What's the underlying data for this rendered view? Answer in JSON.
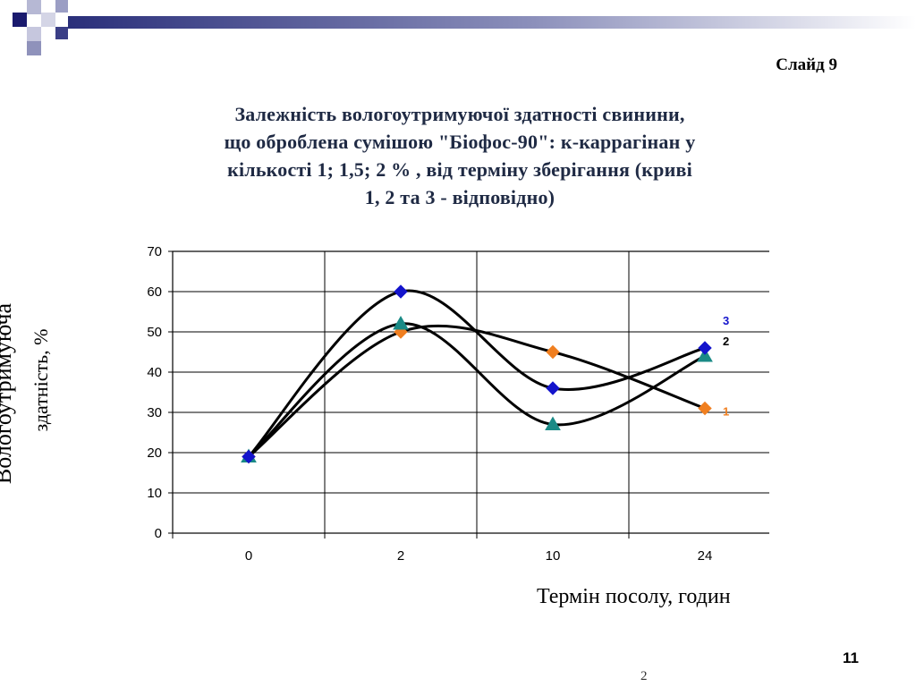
{
  "slide": {
    "label": "Слайд 9",
    "page_number": "11",
    "footer_number": "2"
  },
  "chart_data": {
    "type": "line",
    "title": "Залежність вологоутримуючої здатності свинини, що оброблена сумішою \"Біофос-90\": к-каррагінан у кількості 1; 1,5; 2 % , від терміну зберігання (криві 1, 2 та 3 - відповідно)",
    "title_lines": [
      "Залежність вологоутримуючої здатності свинини,",
      "що оброблена сумішою \"Біофос-90\": к-каррагінан у",
      "кількості 1; 1,5; 2 % , від терміну зберігання (криві",
      "1, 2 та 3 - відповідно)"
    ],
    "ylabel_lines": [
      "Вологоутримуюча",
      "здатність, %"
    ],
    "xlabel": "Термін посолу, годин",
    "categories": [
      "0",
      "2",
      "10",
      "24"
    ],
    "y_ticks": [
      "0",
      "10",
      "20",
      "30",
      "40",
      "50",
      "60",
      "70"
    ],
    "ylim": [
      0,
      70
    ],
    "grid": true,
    "series": [
      {
        "name": "1",
        "marker": "diamond",
        "color": "#f07f20",
        "values": [
          19,
          50,
          45,
          31
        ]
      },
      {
        "name": "2",
        "marker": "triangle",
        "color": "#1a8a86",
        "values": [
          19,
          52,
          27,
          44
        ]
      },
      {
        "name": "3",
        "marker": "diamond",
        "color": "#1414cc",
        "values": [
          19,
          60,
          36,
          46
        ]
      }
    ],
    "curve_labels": [
      {
        "text": "1",
        "color": "#f07f20"
      },
      {
        "text": "2",
        "color": "#000000"
      },
      {
        "text": "3",
        "color": "#1414cc"
      }
    ]
  }
}
